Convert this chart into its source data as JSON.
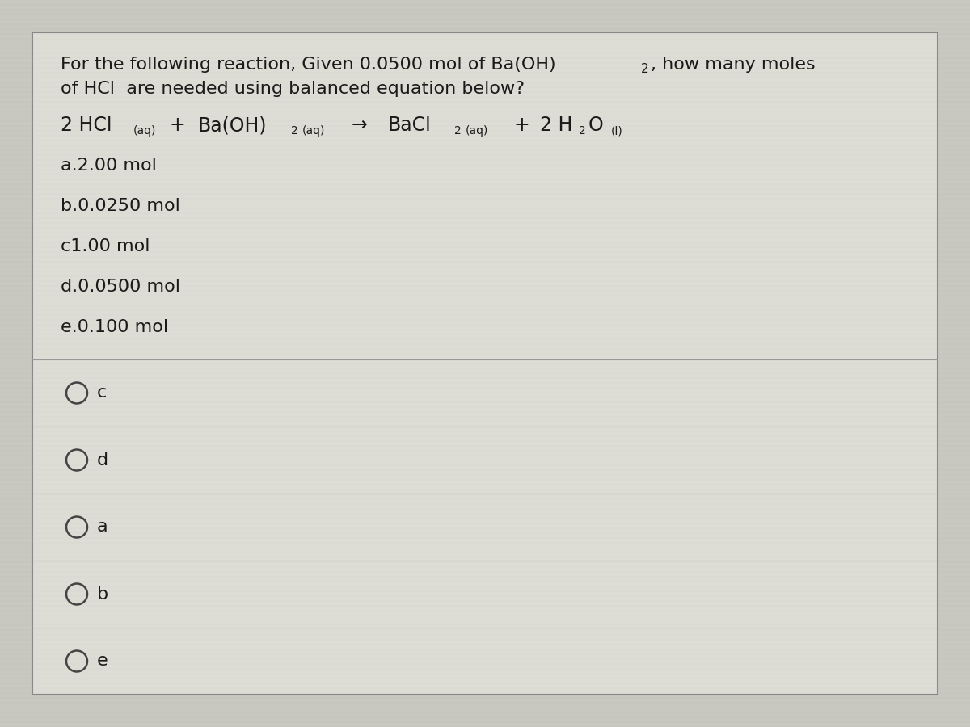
{
  "fig_width": 12.0,
  "fig_height": 9.0,
  "background_color": "#c8c8c0",
  "card_color": "#ddddd5",
  "card_border_color": "#888888",
  "text_color": "#1a1a1a",
  "divider_color": "#999999",
  "circle_color": "#444444",
  "font_size_main": 16,
  "font_size_eq": 17,
  "font_size_sub": 10,
  "font_size_choice": 16,
  "font_size_radio": 16,
  "question_line1": "For the following reaction, Given 0.0500 mol of Ba(OH)",
  "question_line1_sub2": "2",
  "question_line1_end": ", how many moles",
  "question_line2": "of HCl  are needed using balanced equation below?",
  "choices": [
    "a.2.00 mol",
    "b.0.0250 mol",
    "c1.00 mol",
    "d.0.0500 mol",
    "e.0.100 mol"
  ],
  "radio_labels": [
    "c",
    "d",
    "a",
    "b",
    "e"
  ]
}
